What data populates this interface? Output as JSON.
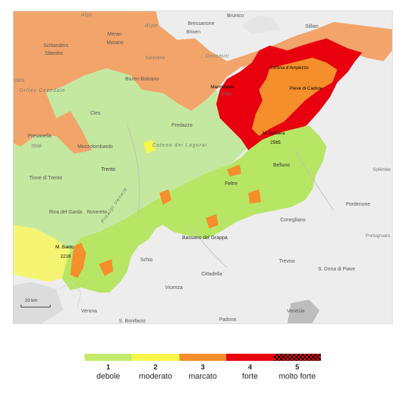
{
  "map": {
    "scale_label": "20 km",
    "peaks": [
      {
        "name": "M. Schiara",
        "elevation": "2565"
      },
      {
        "name": "M. Baldo",
        "elevation": "2218"
      },
      {
        "name": "Marmolada",
        "elevation": ""
      }
    ],
    "places": {
      "cortina": "Cortina d'Ampezzo",
      "pieve": "Pieve di Cadore",
      "belluno": "Belluno",
      "feltre": "Feltre",
      "bassano": "Bassano del Grappa",
      "trento": "Trento",
      "rovereto": "Rovereto",
      "riva": "Riva del Garda",
      "bolzano": "Bozen Bolzano",
      "merano": "Merano",
      "meran": "Meran",
      "bressanone": "Bressanone",
      "brixen": "Brixen",
      "brunico": "Brunico",
      "sillian": "Sillian",
      "cles": "Cles",
      "predazzo": "Predazzo",
      "mezzolombardo": "Mezzolombardo",
      "pordenone": "Pordenone",
      "conegliano": "Conegliano",
      "treviso": "Treviso",
      "vicenza": "Vicenza",
      "cittadella": "Cittadella",
      "schio": "Schio",
      "padova": "Padova",
      "verona": "Verona",
      "venezia": "Venezia",
      "sdona": "S. Dona di Piave",
      "sbonifacio": "S. Bonifacio",
      "portogruaro": "Portogruaro",
      "spilimbergo": "Spilimbe",
      "tione": "Tione di Trento",
      "presanella": "Presanella",
      "schlanders": "Schlanders",
      "silandro": "Silandro",
      "sarentine": "Sarentine",
      "alpe": "Alpe",
      "alpi": "Alpi",
      "ortles": "Ortles Cevedale",
      "dolomiti": "Dolomiti",
      "lagorai": "Catena dei Lagorai",
      "prealpi": "Prealpi Venete",
      "n3905": "3905",
      "n3558": "3558",
      "n2769": "2769"
    }
  },
  "legend": {
    "levels": [
      {
        "level": "1",
        "label": "debole",
        "color": "#c3eb6c"
      },
      {
        "level": "2",
        "label": "moderato",
        "color": "#f7f74a"
      },
      {
        "level": "3",
        "label": "marcato",
        "color": "#f48f2b"
      },
      {
        "level": "4",
        "label": "forte",
        "color": "#e8000f"
      },
      {
        "level": "5",
        "label": "molto forte",
        "color": "#e0000a"
      }
    ]
  }
}
